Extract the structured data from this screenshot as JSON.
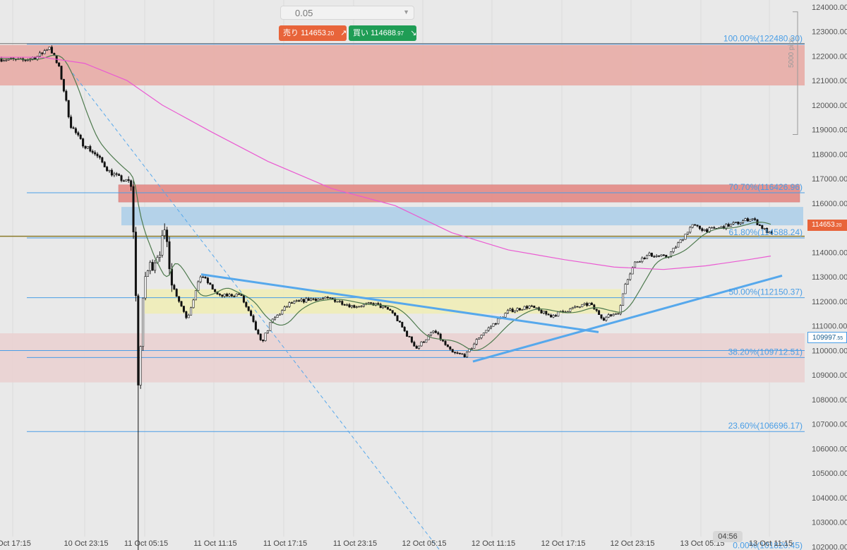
{
  "chart_data": {
    "type": "candlestick",
    "title": "",
    "xlabel": "",
    "ylabel": "",
    "ylim": [
      101800,
      124300
    ],
    "yticks": [
      102000,
      103000,
      104000,
      105000,
      106000,
      107000,
      108000,
      109000,
      110000,
      111000,
      112000,
      113000,
      114000,
      115000,
      116000,
      117000,
      118000,
      119000,
      120000,
      121000,
      122000,
      123000,
      124000
    ],
    "ytick_labels": [
      "102000.00",
      "103000.00",
      "104000.00",
      "105000.00",
      "106000.00",
      "107000.00",
      "108000.00",
      "109000.00",
      "110000.00",
      "111000.00",
      "112000.00",
      "113000.00",
      "114000.00",
      "115000.00",
      "116000.00",
      "117000.00",
      "118000.00",
      "119000.00",
      "120000.00",
      "121000.00",
      "122000.00",
      "123000.00",
      "124000.00"
    ],
    "xticks": [
      "Oct 17:15",
      "10 Oct 23:15",
      "11 Oct 05:15",
      "11 Oct 11:15",
      "11 Oct 17:15",
      "11 Oct 23:15",
      "12 Oct 05:15",
      "12 Oct 11:15",
      "12 Oct 17:15",
      "12 Oct 23:15",
      "13 Oct 05:15",
      "13 Oct 11:15"
    ],
    "grid": true,
    "current_price": "114653.20",
    "secondary_price": "109997.55",
    "fib_levels": [
      {
        "label": "100.00%(122480.30)",
        "value": 122480.3
      },
      {
        "label": "70.70%(116426.96)",
        "value": 116426.96
      },
      {
        "label": "61.80%(114588.24)",
        "value": 114588.24
      },
      {
        "label": "50.00%(112150.37)",
        "value": 112150.37
      },
      {
        "label": "38.20%(109712.51)",
        "value": 109712.51
      },
      {
        "label": "23.60%(106696.17)",
        "value": 106696.17
      },
      {
        "label": "0.00%(101820.45)",
        "value": 101820.45
      }
    ],
    "zones": [
      {
        "low": 120800,
        "high": 122450,
        "color": "#e8aca6"
      },
      {
        "low": 116050,
        "high": 116750,
        "color": "#e48a86"
      },
      {
        "low": 115100,
        "high": 115850,
        "color": "#aecfe9"
      },
      {
        "low": 111500,
        "high": 112500,
        "color": "#f0edb7"
      },
      {
        "low": 108700,
        "high": 110700,
        "color": "#ead0d0"
      }
    ],
    "range_label": "5000 pips"
  },
  "ui": {
    "lot_value": "0.05",
    "sell_label": "売り",
    "sell_price": "114653",
    "sell_price_frac": ".20",
    "buy_label": "買い",
    "buy_price": "114688",
    "buy_price_frac": ".97",
    "current_tag": "114653",
    "current_tag_frac": ".20",
    "alt_tag": "109997",
    "alt_tag_frac": ".55",
    "time_left": "04:56"
  },
  "colors": {
    "background": "#e9e9e9",
    "fib_line": "#4a9ee6",
    "ma_short": "#4e7a4e",
    "ma_long": "#ea5ad2",
    "trendline": "#56a8ec",
    "sell": "#e8643a",
    "buy": "#1f9d55"
  }
}
